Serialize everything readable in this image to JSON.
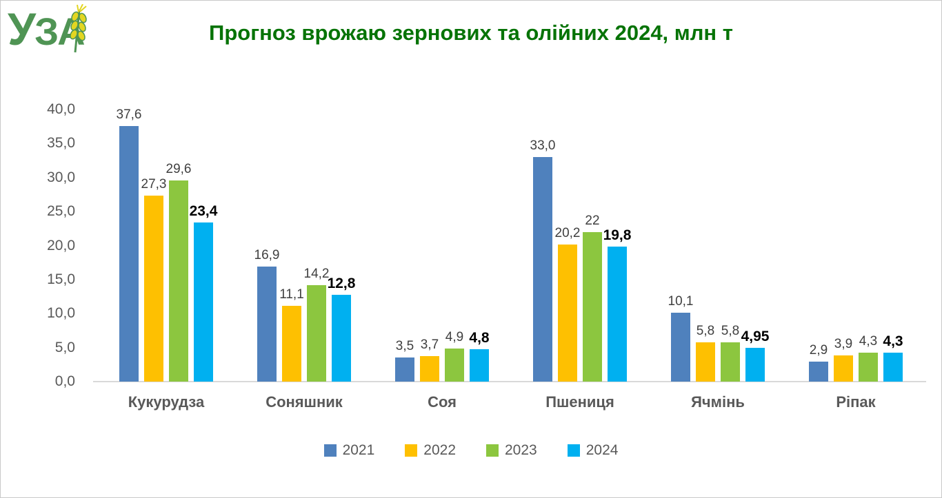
{
  "logo": {
    "text": "УЗА",
    "icon": "wheat-ear-icon",
    "green": "#4f9454",
    "wheat_yellow": "#e3d621"
  },
  "title": "Прогноз врожаю зернових та олійних 2024, млн т",
  "title_color": "#067306",
  "chart_data": {
    "type": "bar",
    "title": "Прогноз врожаю зернових та олійних 2024, млн т",
    "unit": "млн т",
    "categories": [
      "Кукурудза",
      "Соняшник",
      "Соя",
      "Пшениця",
      "Ячмінь",
      "Ріпак"
    ],
    "series": [
      {
        "name": "2021",
        "color": "#4f81bd",
        "values": [
          37.6,
          16.9,
          3.5,
          33.0,
          10.1,
          2.9
        ],
        "labels": [
          "37,6",
          "16,9",
          "3,5",
          "33,0",
          "10,1",
          "2,9"
        ],
        "bold_labels": false
      },
      {
        "name": "2022",
        "color": "#fec001",
        "values": [
          27.3,
          11.1,
          3.7,
          20.2,
          5.8,
          3.9
        ],
        "labels": [
          "27,3",
          "11,1",
          "3,7",
          "20,2",
          "5,8",
          "3,9"
        ],
        "bold_labels": false
      },
      {
        "name": "2023",
        "color": "#8cc63f",
        "values": [
          29.6,
          14.2,
          4.9,
          22,
          5.8,
          4.3
        ],
        "labels": [
          "29,6",
          "14,2",
          "4,9",
          "22",
          "5,8",
          "4,3"
        ],
        "bold_labels": false
      },
      {
        "name": "2024",
        "color": "#00b0f0",
        "values": [
          23.4,
          12.8,
          4.8,
          19.8,
          4.95,
          4.3
        ],
        "labels": [
          "23,4",
          "12,8",
          "4,8",
          "19,8",
          "4,95",
          "4,3"
        ],
        "bold_labels": true
      }
    ],
    "y_axis": {
      "min": 0,
      "max": 40,
      "step": 5,
      "tick_labels": [
        "40,0",
        "35,0",
        "30,0",
        "25,0",
        "20,0",
        "15,0",
        "10,0",
        "5,0",
        "0,0"
      ]
    },
    "x_axis_line_color": "#d9d9d9",
    "grid": false,
    "legend": {
      "position": "bottom",
      "entries": [
        "2021",
        "2022",
        "2023",
        "2024"
      ]
    }
  }
}
